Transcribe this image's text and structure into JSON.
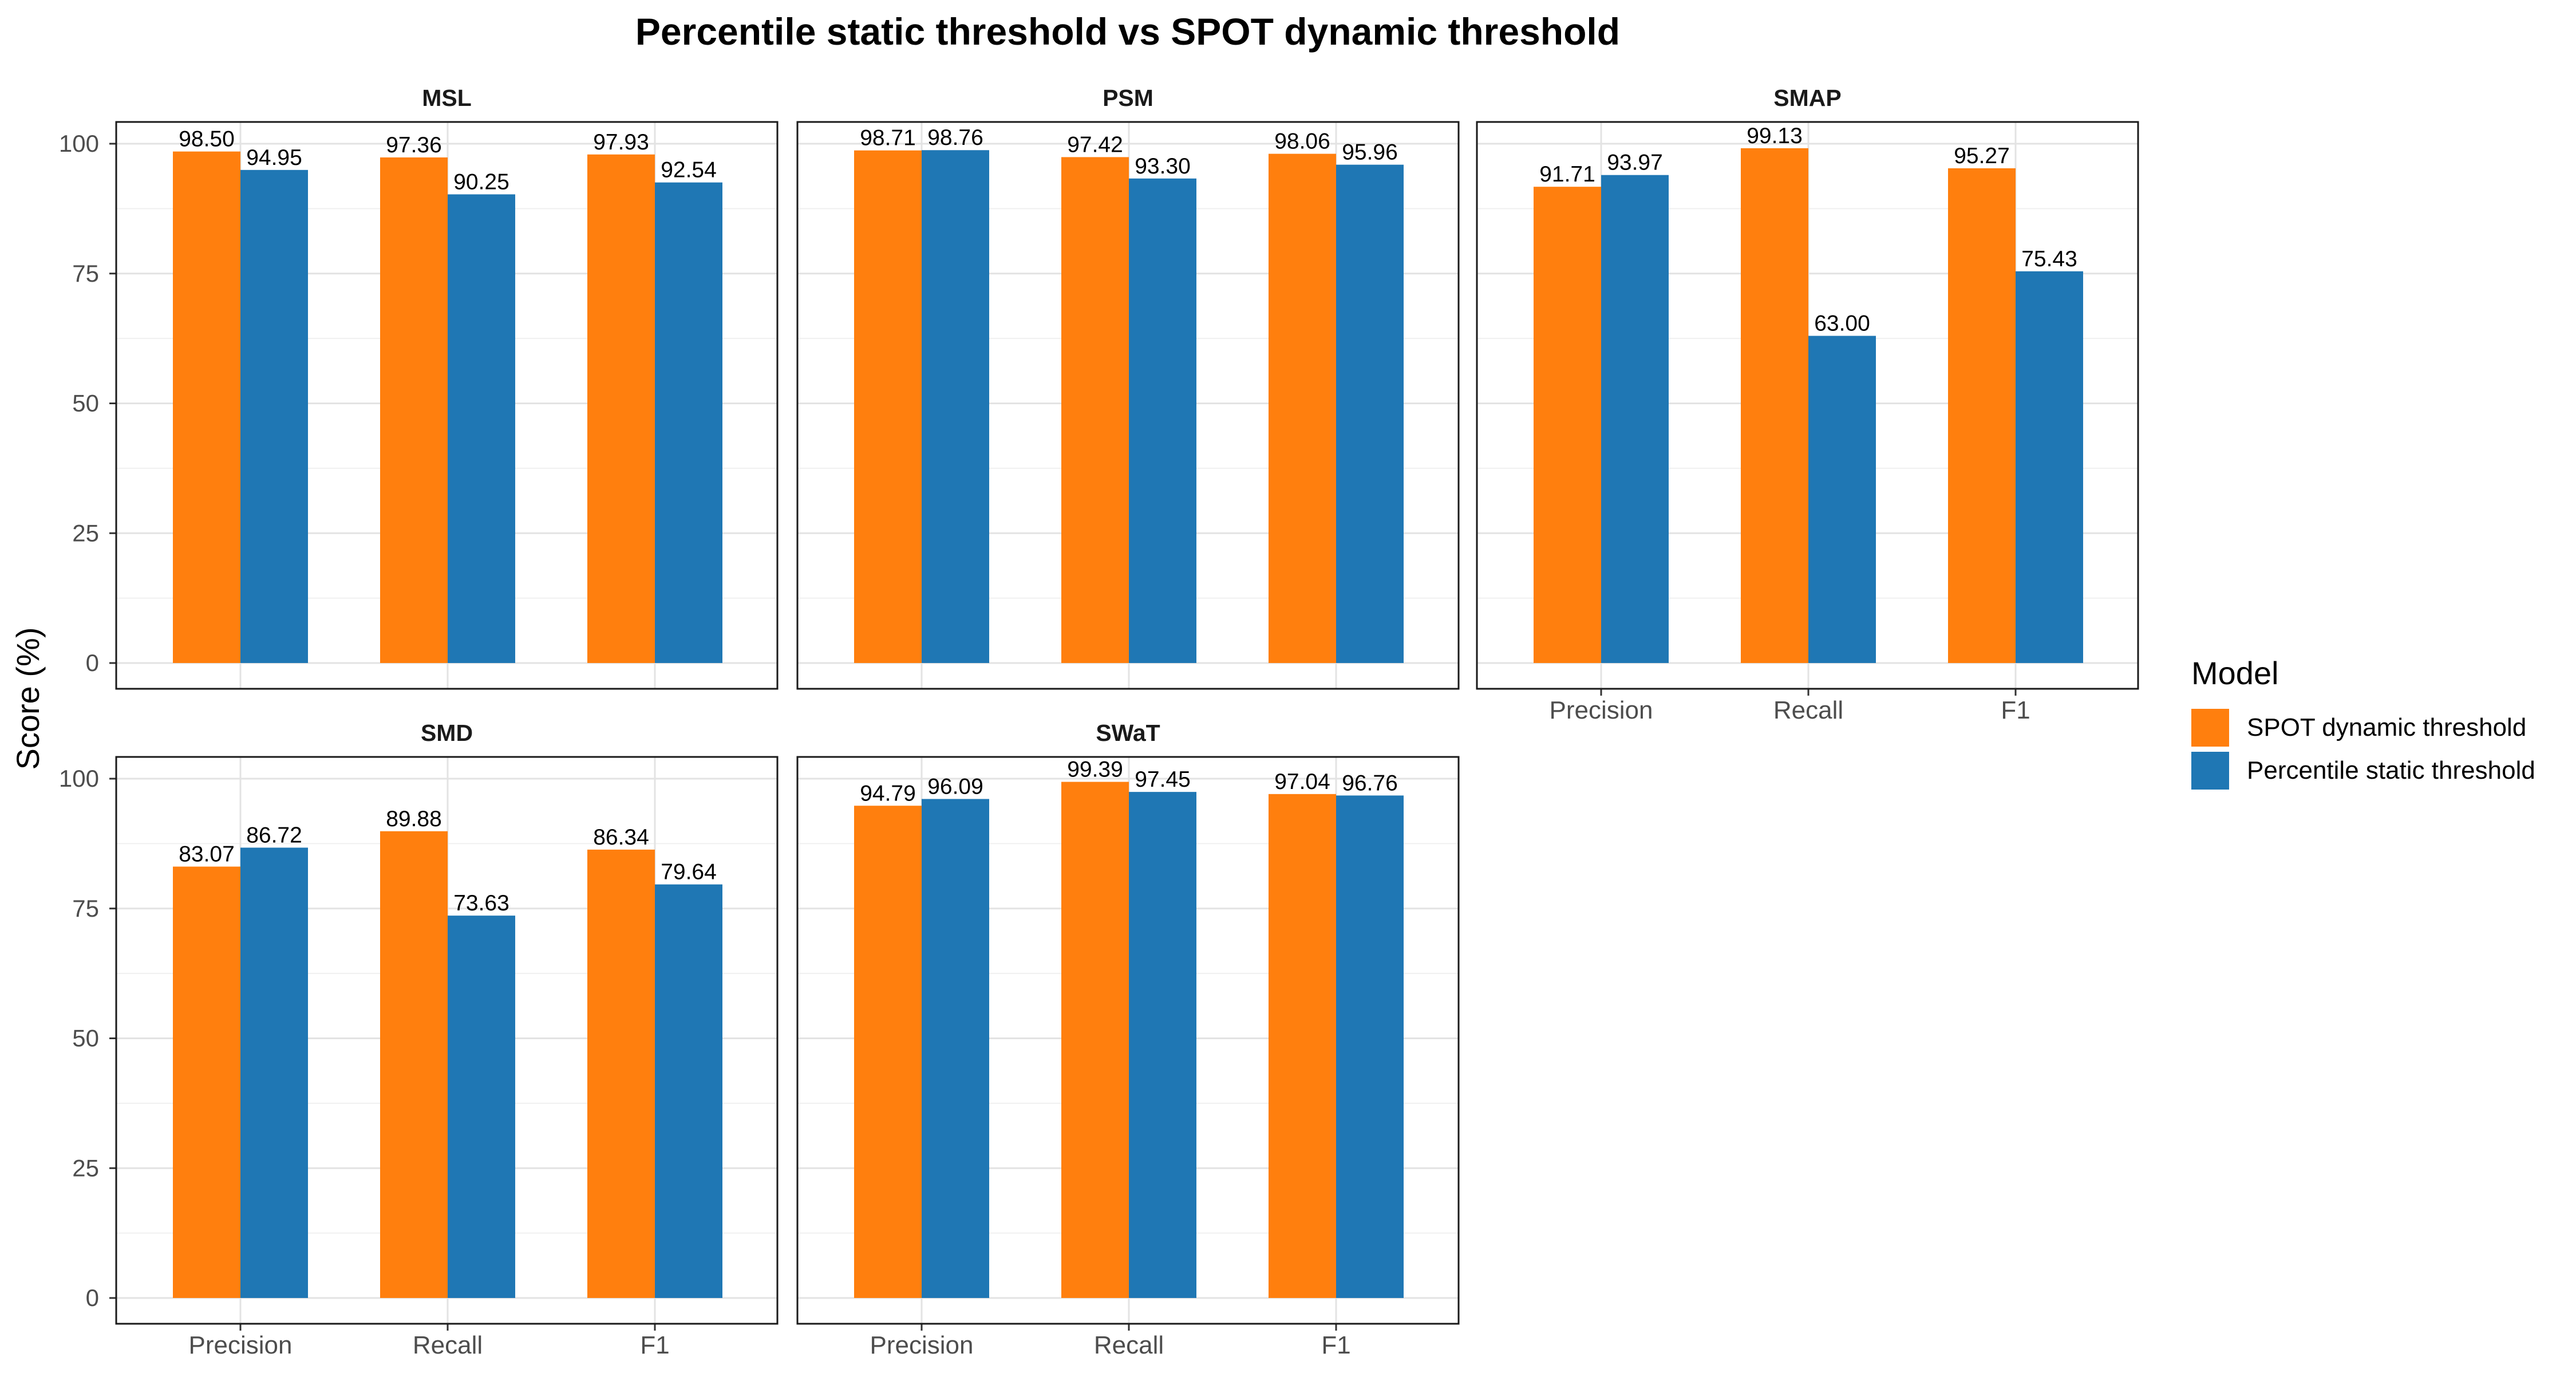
{
  "chart_data": {
    "type": "bar",
    "title": "Percentile static threshold vs SPOT dynamic threshold",
    "ylabel": "Score (%)",
    "xlabel": "",
    "ylim": [
      0,
      105
    ],
    "yticks": [
      0,
      25,
      50,
      75,
      100
    ],
    "grid": true,
    "categories": [
      "Precision",
      "Recall",
      "F1"
    ],
    "legend": {
      "title": "Model",
      "position": "right",
      "entries": [
        {
          "name": "SPOT dynamic threshold",
          "color": "#FF7F0E"
        },
        {
          "name": "Percentile static threshold",
          "color": "#1F77B4"
        }
      ]
    },
    "panels": [
      {
        "name": "MSL",
        "series": [
          {
            "name": "SPOT dynamic threshold",
            "values": [
              98.5,
              97.36,
              97.93
            ],
            "labels": [
              "98.50",
              "97.36",
              "97.93"
            ]
          },
          {
            "name": "Percentile static threshold",
            "values": [
              94.95,
              90.25,
              92.54
            ],
            "labels": [
              "94.95",
              "90.25",
              "92.54"
            ]
          }
        ]
      },
      {
        "name": "PSM",
        "series": [
          {
            "name": "SPOT dynamic threshold",
            "values": [
              98.71,
              97.42,
              98.06
            ],
            "labels": [
              "98.71",
              "97.42",
              "98.06"
            ]
          },
          {
            "name": "Percentile static threshold",
            "values": [
              98.76,
              93.3,
              95.96
            ],
            "labels": [
              "98.76",
              "93.30",
              "95.96"
            ]
          }
        ]
      },
      {
        "name": "SMAP",
        "series": [
          {
            "name": "SPOT dynamic threshold",
            "values": [
              91.71,
              99.13,
              95.27
            ],
            "labels": [
              "91.71",
              "99.13",
              "95.27"
            ]
          },
          {
            "name": "Percentile static threshold",
            "values": [
              93.97,
              63.0,
              75.43
            ],
            "labels": [
              "93.97",
              "63.00",
              "75.43"
            ]
          }
        ]
      },
      {
        "name": "SMD",
        "series": [
          {
            "name": "SPOT dynamic threshold",
            "values": [
              83.07,
              89.88,
              86.34
            ],
            "labels": [
              "83.07",
              "89.88",
              "86.34"
            ]
          },
          {
            "name": "Percentile static threshold",
            "values": [
              86.72,
              73.63,
              79.64
            ],
            "labels": [
              "86.72",
              "73.63",
              "79.64"
            ]
          }
        ]
      },
      {
        "name": "SWaT",
        "series": [
          {
            "name": "SPOT dynamic threshold",
            "values": [
              94.79,
              99.39,
              97.04
            ],
            "labels": [
              "94.79",
              "99.39",
              "97.04"
            ]
          },
          {
            "name": "Percentile static threshold",
            "values": [
              96.09,
              97.45,
              96.76
            ],
            "labels": [
              "96.09",
              "97.45",
              "96.76"
            ]
          }
        ]
      }
    ]
  }
}
